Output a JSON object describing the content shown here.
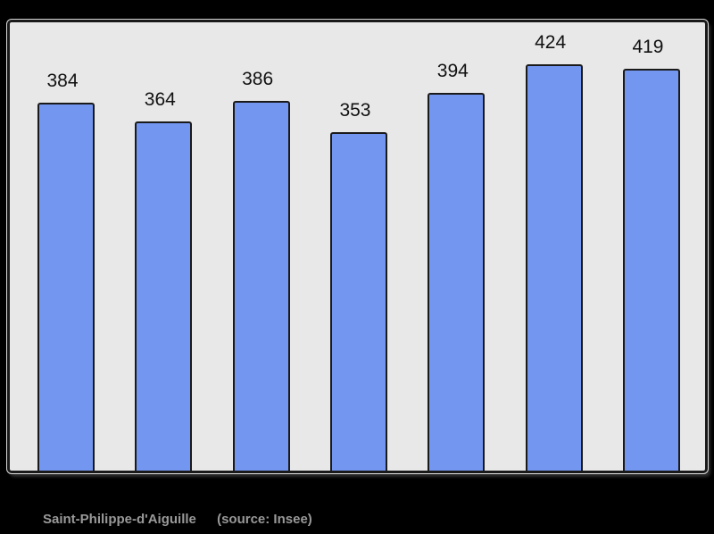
{
  "chart_data": {
    "type": "bar",
    "title": "",
    "xlabel": "",
    "ylabel": "",
    "values": [
      384,
      364,
      386,
      353,
      394,
      424,
      419
    ],
    "value_labels": [
      "384",
      "364",
      "386",
      "353",
      "394",
      "424",
      "419"
    ],
    "ylim": [
      0,
      468
    ],
    "grid": false,
    "legend": "none",
    "bar_color": "#7396f0",
    "bar_border_color": "#1a1a1a",
    "plot_bg_color": "#e8e8e8",
    "frame_border_color": "#1a1a1a",
    "page_bg_color": "#000000",
    "value_label_color": "#111111"
  },
  "caption": {
    "title": "Saint-Philippe-d'Aiguille",
    "source": "(source: Insee)",
    "color": "#999999"
  }
}
